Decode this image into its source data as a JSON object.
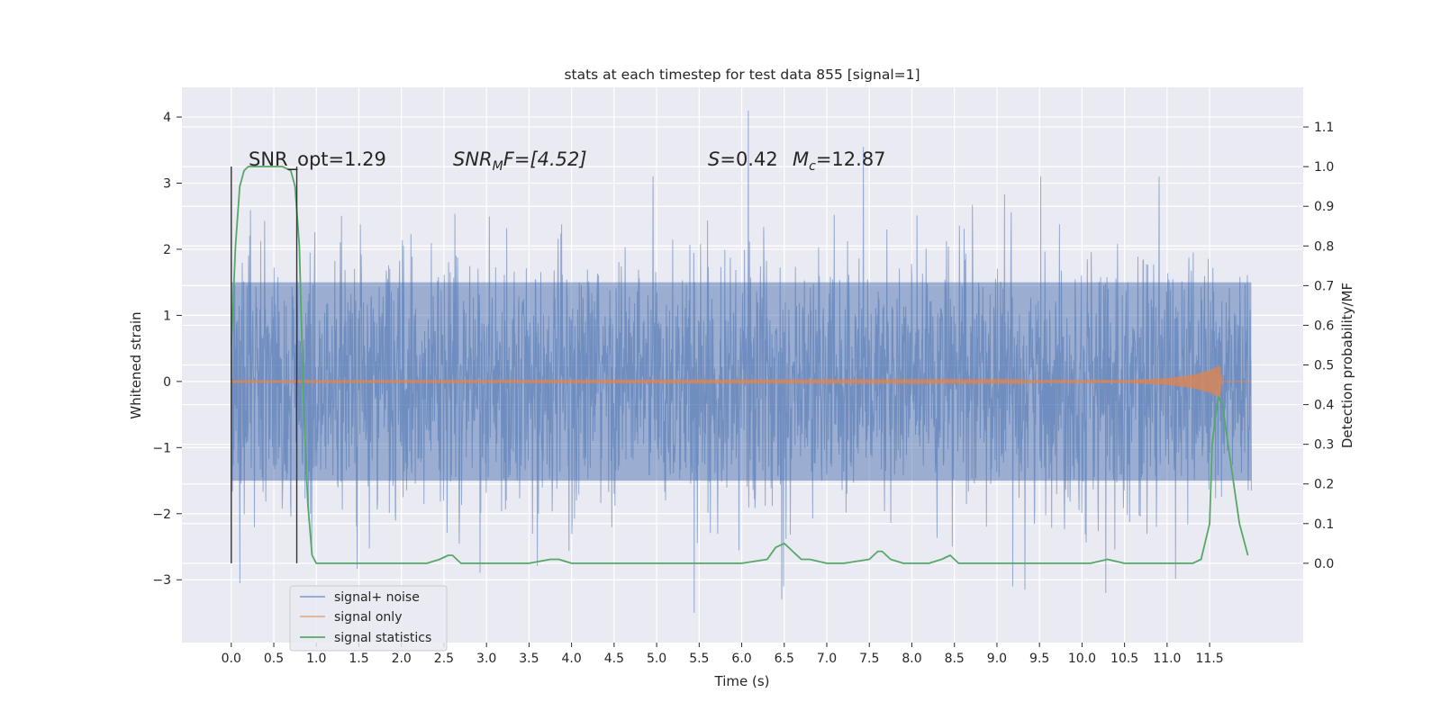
{
  "chart_data": {
    "type": "line",
    "title": "stats at each timestep for test data 855 [signal=1]",
    "xlabel": "Time (s)",
    "ylabel_left": "Whitened strain",
    "ylabel_right": "Detection probability/MF",
    "xlim": [
      -0.58,
      12.6
    ],
    "ylim_left": [
      -3.95,
      4.45
    ],
    "ylim_right": [
      -0.2,
      1.2
    ],
    "x_ticks": [
      0.0,
      0.5,
      1.0,
      1.5,
      2.0,
      2.5,
      3.0,
      3.5,
      4.0,
      4.5,
      5.0,
      5.5,
      6.0,
      6.5,
      7.0,
      7.5,
      8.0,
      8.5,
      9.0,
      9.5,
      10.0,
      10.5,
      11.0,
      11.5
    ],
    "x_tick_labels": [
      "0.0",
      "0.5",
      "1.0",
      "1.5",
      "2.0",
      "2.5",
      "3.0",
      "3.5",
      "4.0",
      "4.5",
      "5.0",
      "5.5",
      "6.0",
      "6.5",
      "7.0",
      "7.5",
      "8.0",
      "8.5",
      "9.0",
      "9.5",
      "10.0",
      "10.5",
      "11.0",
      "11.5"
    ],
    "y_ticks_left": [
      -3,
      -2,
      -1,
      0,
      1,
      2,
      3,
      4
    ],
    "y_tick_labels_left": [
      "−3",
      "−2",
      "−1",
      "0",
      "1",
      "2",
      "3",
      "4"
    ],
    "y_ticks_right": [
      0.0,
      0.1,
      0.2,
      0.3,
      0.4,
      0.5,
      0.6,
      0.7,
      0.8,
      0.9,
      1.0,
      1.1
    ],
    "y_tick_labels_right": [
      "0.0",
      "0.1",
      "0.2",
      "0.3",
      "0.4",
      "0.5",
      "0.6",
      "0.7",
      "0.8",
      "0.9",
      "1.0",
      "1.1"
    ],
    "grid": true,
    "legend_position": "lower-left",
    "colors": {
      "background": "#eaeaf2",
      "grid": "#ffffff",
      "signal_noise": "#4c72b0",
      "signal_only": "#dd8452",
      "statistics": "#55a868",
      "marker_lines": "#333333"
    },
    "series": [
      {
        "name": "signal+ noise",
        "axis": "left",
        "x_range": [
          0.0,
          11.99
        ],
        "envelope": {
          "typical_abs": 1.5,
          "max": 4.1,
          "min": -3.5,
          "notable_peaks": [
            [
              6.08,
              4.1
            ],
            [
              7.43,
              3.55
            ],
            [
              5.44,
              -3.5
            ],
            [
              6.47,
              -3.3
            ],
            [
              0.1,
              -3.05
            ],
            [
              10.28,
              -3.2
            ],
            [
              9.33,
              -3.15
            ]
          ]
        }
      },
      {
        "name": "signal only",
        "axis": "left",
        "x": [
          0.0,
          10.5,
          11.0,
          11.3,
          11.5,
          11.62,
          11.65,
          11.99
        ],
        "amplitude": [
          0.01,
          0.02,
          0.05,
          0.1,
          0.17,
          0.25,
          0.0,
          0.0
        ]
      },
      {
        "name": "signal statistics",
        "axis": "right",
        "x": [
          0.0,
          0.05,
          0.1,
          0.15,
          0.2,
          0.3,
          0.45,
          0.6,
          0.7,
          0.75,
          0.8,
          0.85,
          0.9,
          0.95,
          1.0,
          1.1,
          1.5,
          2.0,
          2.3,
          2.45,
          2.55,
          2.6,
          2.7,
          2.85,
          3.2,
          3.5,
          3.75,
          3.85,
          4.0,
          4.5,
          5.0,
          5.5,
          6.0,
          6.3,
          6.4,
          6.5,
          6.6,
          6.7,
          6.8,
          7.0,
          7.2,
          7.5,
          7.6,
          7.65,
          7.75,
          7.9,
          8.2,
          8.35,
          8.45,
          8.55,
          8.7,
          9.0,
          9.5,
          10.0,
          10.1,
          10.3,
          10.5,
          11.0,
          11.3,
          11.4,
          11.5,
          11.53,
          11.6,
          11.65,
          11.75,
          11.85,
          11.95
        ],
        "y": [
          0.55,
          0.8,
          0.95,
          0.99,
          1.0,
          1.0,
          1.0,
          1.0,
          0.99,
          0.95,
          0.8,
          0.4,
          0.15,
          0.02,
          0.0,
          0.0,
          0.0,
          0.0,
          0.0,
          0.01,
          0.02,
          0.02,
          0.0,
          0.0,
          0.0,
          0.0,
          0.01,
          0.01,
          0.0,
          0.0,
          0.0,
          0.0,
          0.0,
          0.01,
          0.04,
          0.05,
          0.03,
          0.01,
          0.01,
          0.0,
          0.0,
          0.01,
          0.03,
          0.03,
          0.01,
          0.0,
          0.0,
          0.01,
          0.02,
          0.0,
          0.0,
          0.0,
          0.0,
          0.0,
          0.0,
          0.01,
          0.0,
          0.0,
          0.0,
          0.01,
          0.1,
          0.3,
          0.42,
          0.4,
          0.25,
          0.1,
          0.02
        ]
      }
    ],
    "marker_lines": [
      {
        "x": 0.0,
        "y_range": [
          -2.75,
          3.25
        ]
      },
      {
        "x": 0.77,
        "y_range": [
          -2.75,
          3.25
        ]
      }
    ],
    "annotations": {
      "snr_opt": "SNR_opt=1.29",
      "snr_mf_name": "SNR",
      "snr_mf_sub": "M",
      "snr_mf_rest": "F=[4.52]",
      "s_name": "S",
      "s_value": "=0.42",
      "mc_name": "M",
      "mc_sub": "c",
      "mc_value": "=12.87"
    }
  }
}
